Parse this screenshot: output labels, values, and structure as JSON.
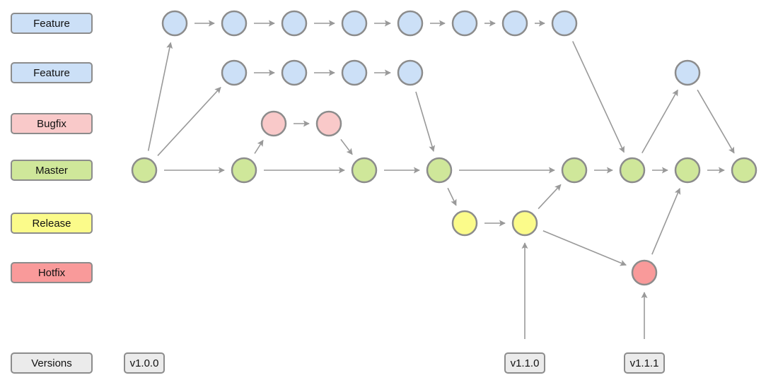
{
  "lanes": [
    {
      "id": "feature1",
      "label": "Feature",
      "color": "#cce0f7"
    },
    {
      "id": "feature2",
      "label": "Feature",
      "color": "#cce0f7"
    },
    {
      "id": "bugfix",
      "label": "Bugfix",
      "color": "#f9c9c9"
    },
    {
      "id": "master",
      "label": "Master",
      "color": "#cfe79a"
    },
    {
      "id": "release",
      "label": "Release",
      "color": "#fbfb8a"
    },
    {
      "id": "hotfix",
      "label": "Hotfix",
      "color": "#f99a9a"
    },
    {
      "id": "versions",
      "label": "Versions",
      "color": "#ebebeb"
    }
  ],
  "versions": [
    "v1.0.0",
    "v1.1.0",
    "v1.1.1"
  ],
  "colors": {
    "stroke": "#8c8c8c",
    "arrow": "#999999",
    "tag_fill": "#ebebeb"
  }
}
